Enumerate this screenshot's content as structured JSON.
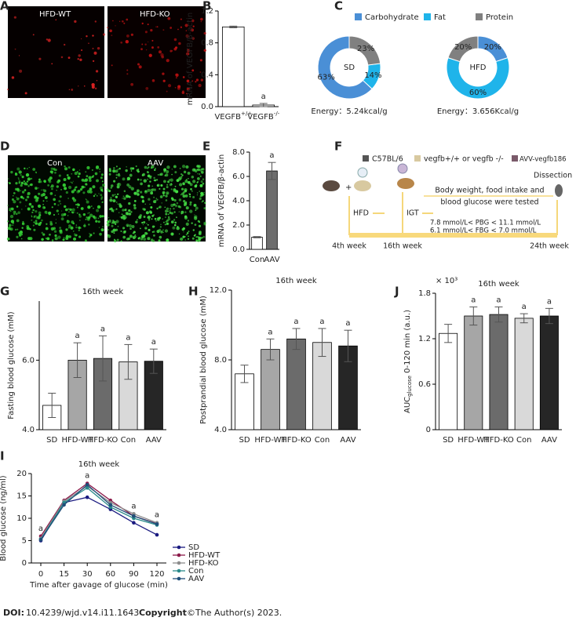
{
  "panel_letters": [
    "A",
    "B",
    "C",
    "D",
    "E",
    "F",
    "G",
    "H",
    "J",
    "I"
  ],
  "micrographs": {
    "A": [
      "HFD-WT",
      "HFD-KO"
    ],
    "D": [
      "Con",
      "AAV"
    ]
  },
  "chart_data": [
    {
      "type": "bar",
      "ylabel": "mRNA of VEGFB/β-actin",
      "categories": [
        "VEGFB+/+",
        "VEGFB-/-"
      ],
      "values": [
        1.0,
        0.02
      ],
      "errors": [
        0.01,
        0.02
      ],
      "colors": [
        "#ffffff",
        "#ffffff"
      ],
      "ylim": [
        0,
        1.2
      ],
      "yticks": [
        {
          "value": 0,
          "label": "0.0"
        },
        0.4,
        0.8,
        1.2
      ],
      "annotations": [
        {
          "text": "a",
          "category": "VEGFB-/-"
        }
      ]
    },
    {
      "type": "donut",
      "center_label": "SD",
      "note": "Energy：5.24kcal/g",
      "categories": [
        "Carbohydrate",
        "Fat",
        "Protein"
      ],
      "values": [
        63,
        14,
        23
      ],
      "value_labels": [
        "63%",
        "14%",
        "23%"
      ],
      "colors": [
        "#4a8fd6",
        "#1fb4ea",
        "#808080"
      ],
      "clockwise": false
    },
    {
      "type": "donut",
      "center_label": "HFD",
      "note": "Energy：3.656Kcal/g",
      "categories": [
        "Carbohydrate",
        "Fat",
        "Protein"
      ],
      "values": [
        20,
        60,
        20
      ],
      "value_labels": [
        "20%",
        "60%",
        "20%"
      ],
      "colors": [
        "#4a8fd6",
        "#1fb4ea",
        "#808080"
      ],
      "clockwise": true
    },
    {
      "type": "bar",
      "ylabel": "mRNA of VEGFB/β-actin",
      "categories": [
        "Con",
        "AAV"
      ],
      "values": [
        1.0,
        6.45
      ],
      "errors": [
        0.05,
        0.7
      ],
      "colors": [
        "#ffffff",
        "#6d6d6d"
      ],
      "ylim": [
        0,
        8
      ],
      "yticks": [
        {
          "value": 0,
          "label": "0.0"
        },
        {
          "value": 2,
          "label": "2.0"
        },
        {
          "value": 4,
          "label": "4.0"
        },
        {
          "value": 6,
          "label": "6.0"
        },
        {
          "value": 8,
          "label": "8.0"
        }
      ],
      "annotations": [
        {
          "text": "a",
          "category": "AAV"
        }
      ]
    },
    {
      "type": "bar",
      "title": "16th week",
      "ylabel": "Fasting blood glucose (mM)",
      "categories": [
        "SD",
        "HFD-WT",
        "HFD-KO",
        "Con",
        "AAV"
      ],
      "values": [
        4.7,
        6.0,
        6.05,
        5.95,
        5.97
      ],
      "errors": [
        0.35,
        0.5,
        0.65,
        0.5,
        0.35
      ],
      "colors": [
        "#ffffff",
        "#a6a6a6",
        "#6b6b6b",
        "#d9d9d9",
        "#262626"
      ],
      "ylim": [
        4,
        7.7
      ],
      "yticks": [
        {
          "value": 4,
          "label": "4.0"
        },
        {
          "value": 6,
          "label": "6.0"
        }
      ],
      "annotations": [
        {
          "text": "a",
          "category": "HFD-WT"
        },
        {
          "text": "a",
          "category": "HFD-KO"
        },
        {
          "text": "a",
          "category": "Con"
        },
        {
          "text": "a",
          "category": "AAV"
        }
      ]
    },
    {
      "type": "bar",
      "title": "16th week",
      "ylabel": "Postprandial blood glucose (mM)",
      "categories": [
        "SD",
        "HFD-WT",
        "HFD-KO",
        "Con",
        "AAV"
      ],
      "values": [
        7.2,
        8.6,
        9.2,
        9.0,
        8.8
      ],
      "errors": [
        0.5,
        0.6,
        0.6,
        0.8,
        0.9
      ],
      "colors": [
        "#ffffff",
        "#a6a6a6",
        "#6b6b6b",
        "#d9d9d9",
        "#262626"
      ],
      "ylim": [
        4,
        12
      ],
      "yticks": [
        {
          "value": 4,
          "label": "4.0"
        },
        {
          "value": 8,
          "label": "8.0"
        },
        {
          "value": 12,
          "label": "12.0"
        }
      ],
      "annotations": [
        {
          "text": "a",
          "category": "HFD-WT"
        },
        {
          "text": "a",
          "category": "HFD-KO"
        },
        {
          "text": "a",
          "category": "Con"
        },
        {
          "text": "a",
          "category": "AAV"
        }
      ]
    },
    {
      "type": "bar",
      "title": "16th week",
      "scale_label": "× 10³",
      "ylabel": "AUC",
      "ylabel_sub": "glucose",
      "ylabel_rest": "0-120 min (a.u.)",
      "categories": [
        "SD",
        "HFD-WT",
        "HFD-KO",
        "Con",
        "AAV"
      ],
      "values": [
        1.27,
        1.5,
        1.52,
        1.47,
        1.5
      ],
      "errors": [
        0.12,
        0.12,
        0.1,
        0.06,
        0.1
      ],
      "colors": [
        "#ffffff",
        "#a6a6a6",
        "#6b6b6b",
        "#d9d9d9",
        "#262626"
      ],
      "ylim": [
        0,
        1.8
      ],
      "yticks": [
        0,
        0.6,
        1.2,
        1.8
      ],
      "annotations": [
        {
          "text": "a",
          "category": "HFD-WT"
        },
        {
          "text": "a",
          "category": "HFD-KO"
        },
        {
          "text": "a",
          "category": "Con"
        },
        {
          "text": "a",
          "category": "AAV"
        }
      ]
    },
    {
      "type": "line",
      "title": "16th week",
      "xlabel": "Time after gavage of glucose (min)",
      "ylabel": "Blood glucose (ng/ml)",
      "categories": [
        "0",
        "15",
        "30",
        "60",
        "90",
        "120"
      ],
      "ylim": [
        0,
        20
      ],
      "yticks": [
        0,
        5,
        10,
        15,
        20
      ],
      "series": [
        {
          "name": "SD",
          "color": "#1a1a80",
          "values": [
            5.0,
            13.5,
            14.7,
            12.0,
            9.0,
            6.3
          ]
        },
        {
          "name": "HFD-WT",
          "color": "#8b1a4a",
          "values": [
            6.0,
            14.0,
            17.8,
            14.0,
            10.5,
            8.8
          ]
        },
        {
          "name": "HFD-KO",
          "color": "#8c8c8c",
          "values": [
            5.5,
            13.8,
            17.2,
            13.5,
            11.0,
            9.0
          ]
        },
        {
          "name": "Con",
          "color": "#2a8a8a",
          "values": [
            5.3,
            13.5,
            16.8,
            12.5,
            10.0,
            8.5
          ]
        },
        {
          "name": "AAV",
          "color": "#1f4e79",
          "values": [
            5.2,
            13.0,
            17.5,
            13.0,
            10.5,
            8.7
          ]
        }
      ],
      "annotations": [
        {
          "text": "a",
          "category": "0"
        },
        {
          "text": "a",
          "category": "30"
        },
        {
          "text": "a",
          "category": "90"
        },
        {
          "text": "a",
          "category": "120"
        }
      ]
    }
  ],
  "diagram": {
    "legend": [
      "C57BL/6",
      "vegfb+/+ or vegfb -/-",
      "AVV-vegfb186"
    ],
    "dissection": "Dissection",
    "tested_lines": [
      "Body weight, food intake and",
      "blood glucose were tested"
    ],
    "hfd": "HFD",
    "igt": "IGT",
    "pbg": "7.8 mmol/L< PBG < 11.1 mmol/L",
    "fbg": "6.1 mmol/L< FBG <  7.0 mmol/L",
    "weeks": [
      "4th week",
      "16th week",
      "24th week"
    ]
  },
  "footer": {
    "doi_label": "DOI:",
    "doi": "10.4239/wjd.v14.i11.1643",
    "copyright_label": "Copyright",
    "copyright": "©The Author(s) 2023."
  }
}
